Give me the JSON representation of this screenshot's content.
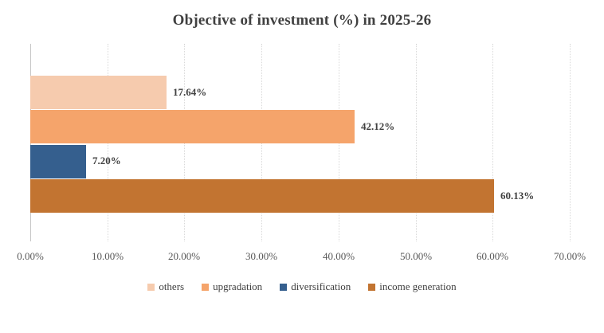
{
  "title": "Objective of investment (%) in 2025-26",
  "chart_data": {
    "type": "bar",
    "orientation": "horizontal",
    "title": "Objective of investment (%) in 2025-26",
    "categories": [
      "others",
      "upgradation",
      "diversification",
      "income generation"
    ],
    "values": [
      17.64,
      42.12,
      7.2,
      60.13
    ],
    "value_labels": [
      "17.64%",
      "42.12%",
      "7.20%",
      "60.13%"
    ],
    "colors": [
      "#F6CBAE",
      "#F5A46B",
      "#355F8E",
      "#C27431"
    ],
    "x_ticks": [
      "0.00%",
      "10.00%",
      "20.00%",
      "30.00%",
      "40.00%",
      "50.00%",
      "60.00%",
      "70.00%"
    ],
    "xlim": [
      0,
      70
    ],
    "xlabel": "",
    "ylabel": "",
    "grid": "vertical-dotted",
    "legend_position": "bottom",
    "legend": [
      "others",
      "upgradation",
      "diversification",
      "income generation"
    ]
  }
}
